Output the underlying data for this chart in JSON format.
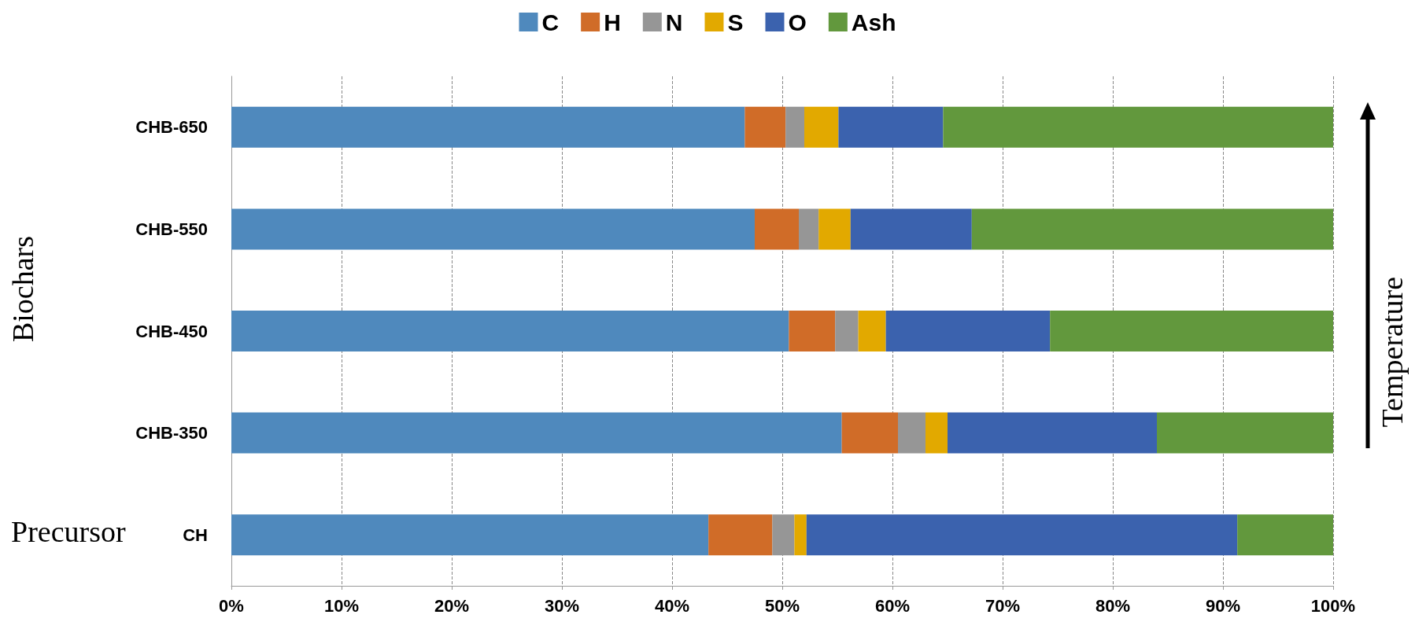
{
  "chart_data": {
    "type": "bar",
    "orientation": "horizontal",
    "stacked": true,
    "categories": [
      "CHB-650",
      "CHB-550",
      "CHB-450",
      "CHB-350",
      "CH"
    ],
    "series": [
      {
        "name": "C",
        "color": "#4f89bd",
        "values": [
          46.6,
          47.5,
          50.6,
          55.4,
          43.3
        ]
      },
      {
        "name": "H",
        "color": "#d06c28",
        "values": [
          3.7,
          4.0,
          4.2,
          5.1,
          5.8
        ]
      },
      {
        "name": "N",
        "color": "#969696",
        "values": [
          1.7,
          1.8,
          2.1,
          2.5,
          2.0
        ]
      },
      {
        "name": "S",
        "color": "#e2a900",
        "values": [
          3.1,
          2.9,
          2.5,
          2.0,
          1.1
        ]
      },
      {
        "name": "O",
        "color": "#3b62ae",
        "values": [
          9.5,
          11.0,
          14.9,
          19.0,
          39.1
        ]
      },
      {
        "name": "Ash",
        "color": "#62983d",
        "values": [
          35.4,
          32.8,
          25.7,
          16.0,
          8.7
        ]
      }
    ],
    "xlim": [
      0,
      100
    ],
    "xticks": [
      {
        "value": 0,
        "label": "0%"
      },
      {
        "value": 10,
        "label": "10%"
      },
      {
        "value": 20,
        "label": "20%"
      },
      {
        "value": 30,
        "label": "30%"
      },
      {
        "value": 40,
        "label": "40%"
      },
      {
        "value": 50,
        "label": "50%"
      },
      {
        "value": 60,
        "label": "60%"
      },
      {
        "value": 70,
        "label": "70%"
      },
      {
        "value": 80,
        "label": "80%"
      },
      {
        "value": 90,
        "label": "90%"
      },
      {
        "value": 100,
        "label": "100%"
      }
    ],
    "grid": "x",
    "legend": "top",
    "annotations": [
      "Biochars",
      "Precursor",
      "Temperature"
    ]
  }
}
